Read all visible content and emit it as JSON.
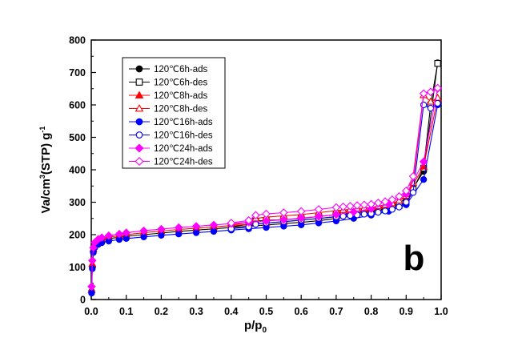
{
  "chart_data": {
    "type": "line",
    "title": "",
    "panel_label": "b",
    "xlabel": {
      "main": "p/p",
      "sub": "0"
    },
    "ylabel": {
      "pre": "Va/cm",
      "sup1": "3",
      "mid": "(STP) g",
      "sup2": "-1"
    },
    "xlim": [
      0.0,
      1.0
    ],
    "ylim": [
      0,
      800
    ],
    "xticks": [
      "0.0",
      "0.1",
      "0.2",
      "0.3",
      "0.4",
      "0.5",
      "0.6",
      "0.7",
      "0.8",
      "0.9",
      "1.0"
    ],
    "yticks": [
      "0",
      "100",
      "200",
      "300",
      "400",
      "500",
      "600",
      "700",
      "800"
    ],
    "grid": false,
    "legend_position": "top-left",
    "series": [
      {
        "name": "120℃6h-ads",
        "color": "#000000",
        "marker": "circle",
        "filled": true,
        "x": [
          0.001,
          0.003,
          0.006,
          0.01,
          0.02,
          0.03,
          0.05,
          0.08,
          0.1,
          0.15,
          0.2,
          0.25,
          0.3,
          0.35,
          0.4,
          0.45,
          0.5,
          0.55,
          0.6,
          0.65,
          0.7,
          0.75,
          0.8,
          0.85,
          0.9,
          0.95,
          0.99
        ],
        "y": [
          25,
          100,
          150,
          168,
          178,
          183,
          188,
          192,
          195,
          200,
          205,
          210,
          214,
          218,
          222,
          226,
          230,
          234,
          238,
          243,
          250,
          258,
          268,
          282,
          310,
          395,
          730
        ]
      },
      {
        "name": "120℃6h-des",
        "color": "#000000",
        "marker": "square",
        "filled": false,
        "x": [
          0.99,
          0.97,
          0.95,
          0.92,
          0.9,
          0.88,
          0.86,
          0.84,
          0.82,
          0.8,
          0.78,
          0.76,
          0.74,
          0.72,
          0.7,
          0.65,
          0.6,
          0.55,
          0.5,
          0.47,
          0.45,
          0.4
        ],
        "y": [
          728,
          600,
          405,
          340,
          300,
          290,
          285,
          280,
          276,
          272,
          270,
          268,
          266,
          264,
          262,
          256,
          250,
          246,
          244,
          242,
          232,
          224
        ]
      },
      {
        "name": "120℃8h-ads",
        "color": "#ff0000",
        "marker": "triangle",
        "filled": true,
        "x": [
          0.001,
          0.003,
          0.006,
          0.01,
          0.02,
          0.03,
          0.05,
          0.08,
          0.1,
          0.15,
          0.2,
          0.25,
          0.3,
          0.35,
          0.4,
          0.45,
          0.5,
          0.55,
          0.6,
          0.65,
          0.7,
          0.75,
          0.8,
          0.85,
          0.9,
          0.95,
          0.99
        ],
        "y": [
          30,
          110,
          155,
          172,
          182,
          187,
          192,
          197,
          200,
          206,
          211,
          216,
          220,
          224,
          228,
          232,
          236,
          240,
          245,
          250,
          256,
          264,
          274,
          288,
          318,
          410,
          620
        ]
      },
      {
        "name": "120℃8h-des",
        "color": "#ff0000",
        "marker": "triangle",
        "filled": false,
        "x": [
          0.99,
          0.97,
          0.95,
          0.92,
          0.9,
          0.88,
          0.86,
          0.84,
          0.82,
          0.8,
          0.78,
          0.76,
          0.74,
          0.72,
          0.7,
          0.65,
          0.6,
          0.55,
          0.5,
          0.47,
          0.45,
          0.4
        ],
        "y": [
          622,
          610,
          630,
          360,
          320,
          305,
          297,
          292,
          288,
          284,
          282,
          280,
          278,
          276,
          274,
          268,
          262,
          258,
          254,
          250,
          238,
          230
        ]
      },
      {
        "name": "120℃16h-ads",
        "color": "#0000ff",
        "marker": "circle",
        "filled": true,
        "x": [
          0.001,
          0.003,
          0.006,
          0.01,
          0.02,
          0.03,
          0.05,
          0.08,
          0.1,
          0.15,
          0.2,
          0.25,
          0.3,
          0.35,
          0.4,
          0.45,
          0.5,
          0.55,
          0.6,
          0.65,
          0.7,
          0.75,
          0.8,
          0.85,
          0.9,
          0.95,
          0.99
        ],
        "y": [
          20,
          95,
          145,
          160,
          170,
          175,
          180,
          185,
          188,
          193,
          198,
          202,
          206,
          210,
          214,
          218,
          222,
          226,
          230,
          236,
          242,
          250,
          260,
          272,
          292,
          370,
          600
        ]
      },
      {
        "name": "120℃16h-des",
        "color": "#0000ff",
        "marker": "circle",
        "filled": false,
        "x": [
          0.99,
          0.97,
          0.95,
          0.92,
          0.9,
          0.88,
          0.86,
          0.84,
          0.82,
          0.8,
          0.78,
          0.76,
          0.74,
          0.72,
          0.7,
          0.65,
          0.6,
          0.55,
          0.5,
          0.47,
          0.45,
          0.4
        ],
        "y": [
          605,
          590,
          600,
          330,
          300,
          285,
          278,
          273,
          269,
          265,
          263,
          261,
          259,
          257,
          255,
          250,
          245,
          240,
          236,
          232,
          224,
          218
        ]
      },
      {
        "name": "120℃24h-ads",
        "color": "#ff00ff",
        "marker": "diamond",
        "filled": true,
        "x": [
          0.001,
          0.003,
          0.006,
          0.01,
          0.02,
          0.03,
          0.05,
          0.08,
          0.1,
          0.15,
          0.2,
          0.25,
          0.3,
          0.35,
          0.4,
          0.45,
          0.5,
          0.55,
          0.6,
          0.65,
          0.7,
          0.75,
          0.8,
          0.85,
          0.9,
          0.95,
          0.99
        ],
        "y": [
          40,
          120,
          160,
          176,
          186,
          191,
          197,
          202,
          206,
          212,
          217,
          222,
          226,
          230,
          234,
          238,
          242,
          246,
          251,
          256,
          262,
          270,
          280,
          294,
          325,
          425,
          650
        ]
      },
      {
        "name": "120℃24h-des",
        "color": "#ff00ff",
        "marker": "diamond",
        "filled": false,
        "x": [
          0.99,
          0.97,
          0.95,
          0.92,
          0.9,
          0.88,
          0.86,
          0.84,
          0.82,
          0.8,
          0.78,
          0.76,
          0.74,
          0.72,
          0.7,
          0.65,
          0.6,
          0.55,
          0.5,
          0.47,
          0.45,
          0.4
        ],
        "y": [
          652,
          640,
          635,
          380,
          335,
          318,
          308,
          302,
          298,
          294,
          292,
          290,
          288,
          286,
          284,
          278,
          272,
          268,
          264,
          260,
          244,
          236
        ]
      }
    ]
  }
}
